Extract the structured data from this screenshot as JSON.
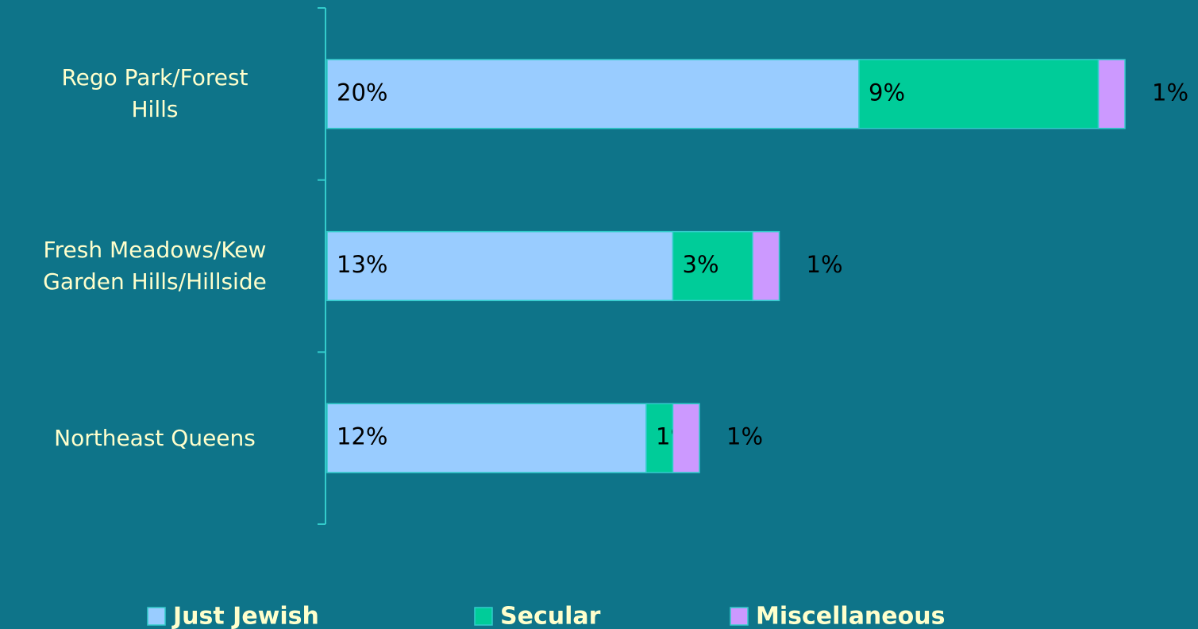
{
  "chart_data": {
    "type": "stacked_barh",
    "categories": [
      "Rego Park/Forest\nHills",
      "Fresh Meadows/Kew\nGarden Hills/Hillside",
      "Northeast Queens"
    ],
    "series": [
      {
        "name": "Just Jewish",
        "color": "#99ccff",
        "values": [
          20,
          13,
          12
        ],
        "value_labels": [
          "20%",
          "13%",
          "12%"
        ]
      },
      {
        "name": "Secular",
        "color": "#00cc99",
        "values": [
          9,
          3,
          1
        ],
        "value_labels": [
          "9%",
          "3%",
          "1%"
        ]
      },
      {
        "name": "Miscellaneous",
        "color": "#cc99ff",
        "values": [
          1,
          1,
          1
        ],
        "value_labels": [
          "1%",
          "1%",
          "1%"
        ]
      }
    ],
    "legend": "bottom"
  }
}
